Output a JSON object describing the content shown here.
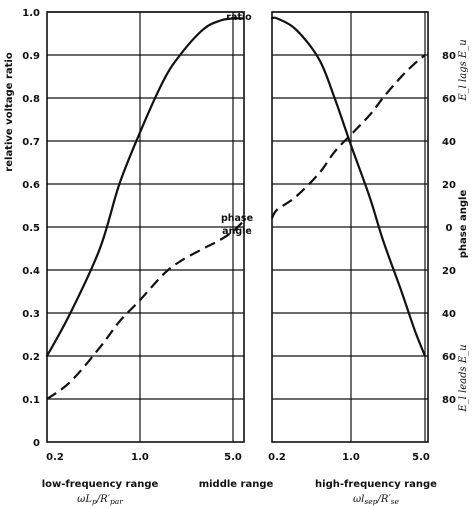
{
  "chart_data": [
    {
      "type": "line",
      "panel": "low-frequency range",
      "xlabel": "low-frequency range",
      "xlabel_math": "ωL_p/R'_par",
      "ylabel": "relative voltage ratio",
      "xscale": "log",
      "xticks": [
        "0.2",
        "1.0",
        "5.0"
      ],
      "yticks": [
        "0",
        "0.1",
        "0.2",
        "0.3",
        "0.4",
        "0.5",
        "0.6",
        "0.7",
        "0.8",
        "0.9",
        "1.0"
      ],
      "ylim": [
        0,
        1.0
      ],
      "series": [
        {
          "name": "ratio",
          "style": "solid",
          "axis": "ratio",
          "x": [
            0.2,
            0.3,
            0.5,
            0.7,
            1.0,
            1.5,
            2.0,
            3.0,
            4.0,
            5.0,
            6.0
          ],
          "y": [
            0.2,
            0.3,
            0.45,
            0.6,
            0.72,
            0.84,
            0.9,
            0.96,
            0.98,
            0.985,
            0.985
          ]
        },
        {
          "name": "phase angle",
          "style": "dashed",
          "axis": "ratio",
          "x": [
            0.2,
            0.3,
            0.5,
            0.7,
            1.0,
            1.5,
            2.0,
            3.0,
            4.0,
            5.0,
            6.0
          ],
          "y": [
            0.1,
            0.14,
            0.22,
            0.28,
            0.33,
            0.39,
            0.42,
            0.45,
            0.47,
            0.49,
            0.51
          ]
        }
      ]
    },
    {
      "type": "line",
      "panel": "high-frequency range",
      "xlabel": "high-frequency range",
      "xlabel_math": "ωl_sep/R'_se",
      "ylabel": "phase angle",
      "ylabel_upper": "E_l lags E_u",
      "ylabel_lower": "E_l leads E_u",
      "xscale": "log",
      "xticks": [
        "0.2",
        "1.0",
        "5.0"
      ],
      "yticks": [
        "80",
        "60",
        "40",
        "20",
        "0",
        "20",
        "40",
        "60",
        "80"
      ],
      "ylim": [
        -90,
        90
      ],
      "series": [
        {
          "name": "ratio",
          "style": "solid",
          "axis": "ratio",
          "x": [
            0.15,
            0.2,
            0.3,
            0.5,
            0.7,
            1.0,
            1.5,
            2.0,
            3.0,
            4.0,
            5.0
          ],
          "y": [
            0.985,
            0.985,
            0.96,
            0.89,
            0.8,
            0.69,
            0.57,
            0.47,
            0.35,
            0.26,
            0.2
          ]
        },
        {
          "name": "phase angle",
          "style": "dashed",
          "axis": "phase",
          "x": [
            0.15,
            0.2,
            0.3,
            0.5,
            0.7,
            1.0,
            1.5,
            2.0,
            3.0,
            4.0,
            5.0
          ],
          "y": [
            4,
            8,
            14,
            25,
            35,
            43,
            52,
            60,
            70,
            76,
            80
          ]
        }
      ]
    }
  ],
  "labels": {
    "ylabel_left": "relative voltage ratio",
    "ylabel_right": "phase angle",
    "ylabel_right_top": "E_l lags E_u",
    "ylabel_right_bottom": "E_l leads E_u",
    "annot_ratio": "ratio",
    "annot_phase_line1": "phase",
    "annot_phase_line2": "angle",
    "x_low_title": "low-frequency range",
    "x_mid_title": "middle range",
    "x_high_title": "high-frequency range",
    "x_low_math_main": "ωL",
    "x_low_math_sub": "p",
    "x_low_math_div": "/R′",
    "x_low_math_sub2": "par",
    "x_high_math_main": "ωl",
    "x_high_math_sub": "sep",
    "x_high_math_div": "/R′",
    "x_high_math_sub2": "se"
  }
}
